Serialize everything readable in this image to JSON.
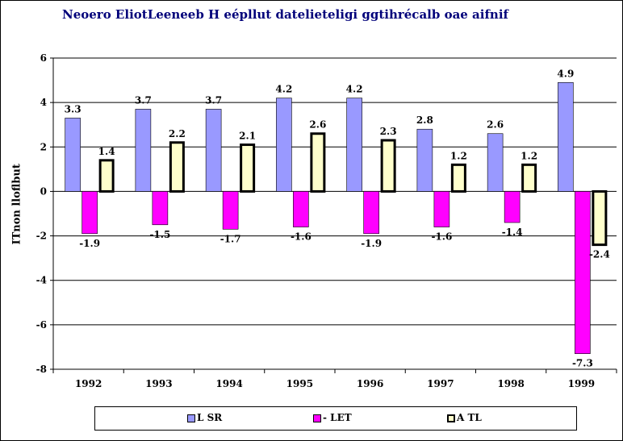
{
  "chart_data": {
    "type": "bar",
    "title": "Neoero EliotLeeneeb H eépllut  datelieteligi ggtihrécalb oae aifnif",
    "xlabel": "",
    "ylabel": "ITnon lloflbut",
    "ylim": [
      -8,
      6
    ],
    "yticks": [
      "6",
      "4",
      "2",
      "0",
      "-2",
      "-4",
      "-6",
      "-8"
    ],
    "grid": true,
    "legend_position": "bottom",
    "categories": [
      "1992",
      "1993",
      "1994",
      "1995",
      "1996",
      "1997",
      "1998",
      "1999"
    ],
    "series": [
      {
        "name": "L SR",
        "color": "#9999ff",
        "values": [
          3.3,
          3.7,
          3.7,
          4.2,
          4.2,
          2.8,
          2.6,
          4.9
        ],
        "labels": [
          "3.3",
          "3.7",
          "3.7",
          "4.2",
          "4.2",
          "2.8",
          "2.6",
          "4.9"
        ]
      },
      {
        "name": "- LET",
        "color": "#ff00ff",
        "values": [
          -1.9,
          -1.5,
          -1.7,
          -1.6,
          -1.9,
          -1.6,
          -1.4,
          -7.3
        ],
        "labels": [
          "-1.9",
          "-1.5",
          "-1.7",
          "-1.6",
          "-1.9",
          "-1.6",
          "-1.4",
          "-7.3"
        ]
      },
      {
        "name": "A TL",
        "color": "#ffffcc",
        "values": [
          1.4,
          2.2,
          2.1,
          2.6,
          2.3,
          1.2,
          1.2,
          -2.4
        ],
        "labels": [
          "1.4",
          "2.2",
          "2.1",
          "2.6",
          "2.3",
          "1.2",
          "1.2",
          "-2.4"
        ]
      }
    ]
  }
}
